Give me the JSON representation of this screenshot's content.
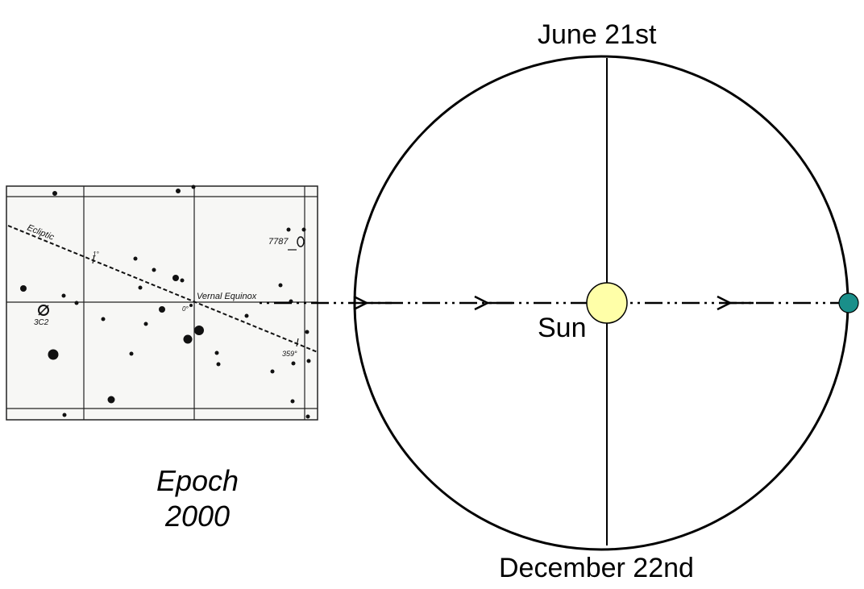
{
  "diagram": {
    "orbit_top_label": "June 21st",
    "orbit_bottom_label": "December 22nd",
    "sun_label": "Sun",
    "epoch_label_line1": "Epoch",
    "epoch_label_line2": "2000",
    "colors": {
      "sun_fill": "#ffffa8",
      "earth_fill": "#1a8f8a",
      "line": "#000000",
      "chart_paper": "#f7f7f5"
    }
  },
  "star_chart": {
    "ecliptic_label": "Ecliptic",
    "vernal_equinox_label": "Vernal Equinox",
    "object_3c2_label": "3C2",
    "object_7787_label": "7787",
    "tick_1_label": "1°",
    "tick_0_label": "0°",
    "tick_359_label": "359°"
  }
}
